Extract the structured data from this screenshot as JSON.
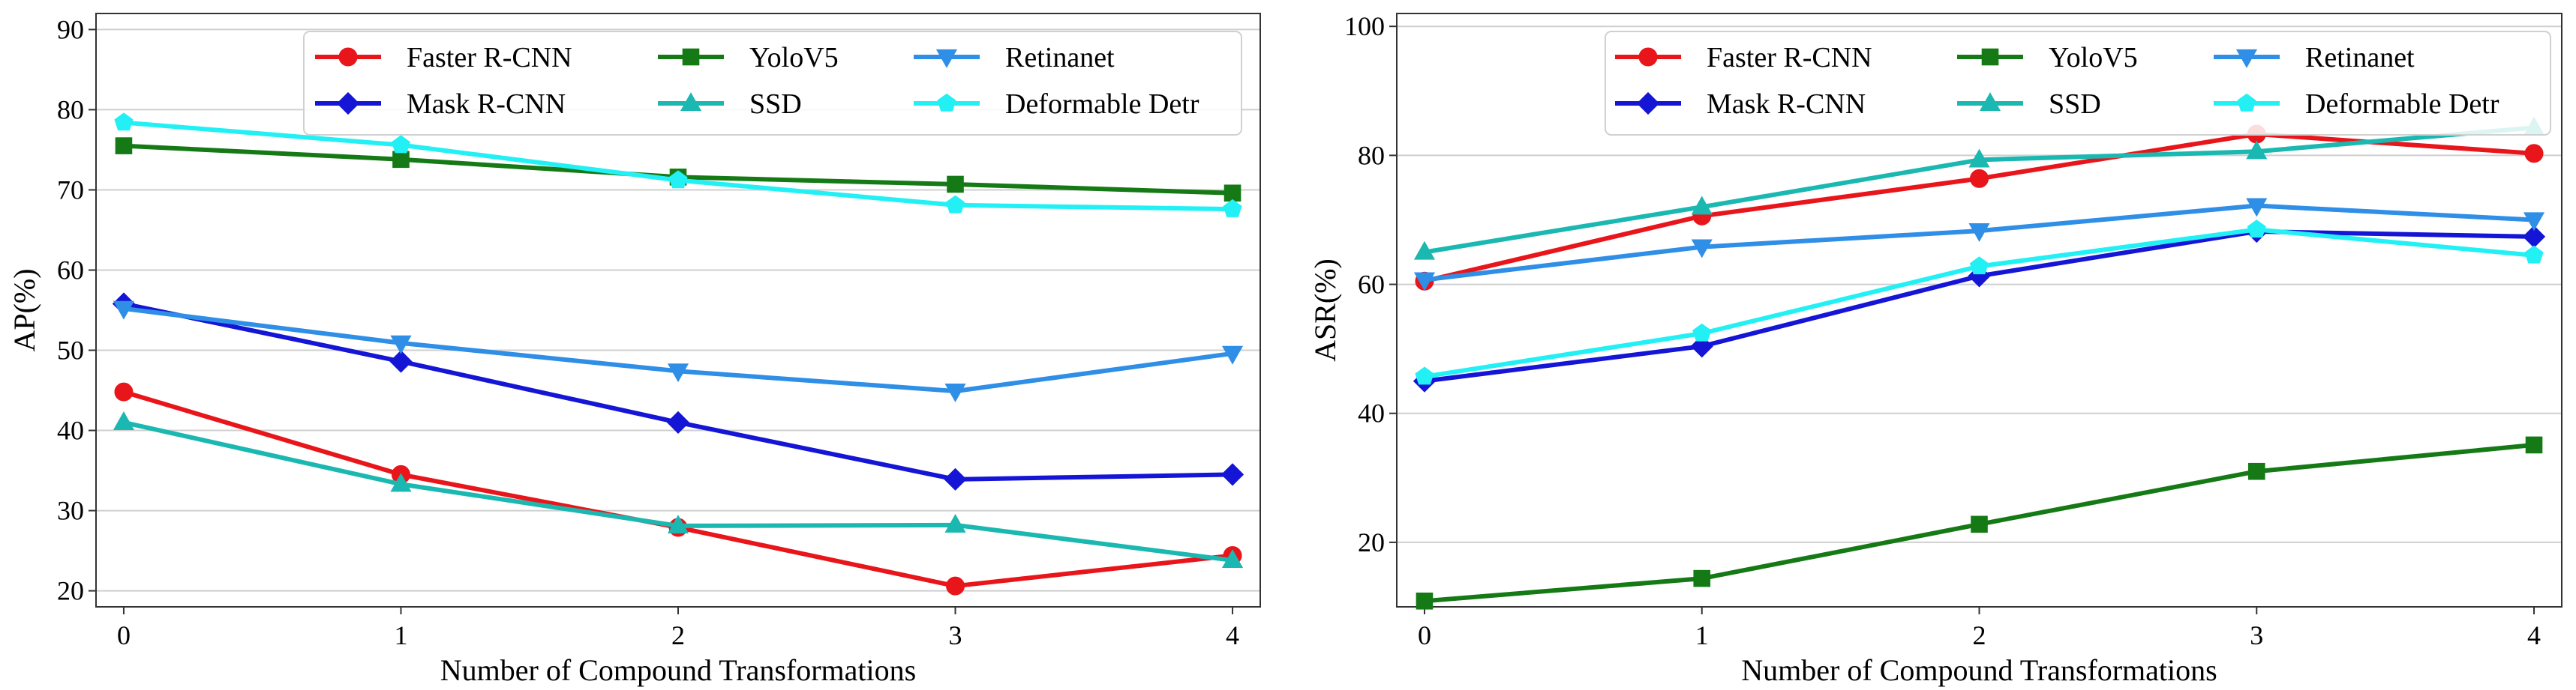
{
  "chart_data": [
    {
      "type": "line",
      "title": "",
      "xlabel": "Number of Compound Transformations",
      "ylabel": "AP(%)",
      "x": [
        0,
        1,
        2,
        3,
        4
      ],
      "xlim": [
        -0.1,
        4.1
      ],
      "ylim": [
        18,
        92
      ],
      "yticks": [
        20,
        30,
        40,
        50,
        60,
        70,
        80,
        90
      ],
      "grid": "horizontal",
      "legend_position": "top-right",
      "series": [
        {
          "name": "Faster R-CNN",
          "color": "#e8161b",
          "marker": "circle",
          "values": [
            44.8,
            34.5,
            27.9,
            20.6,
            24.4
          ]
        },
        {
          "name": "Mask R-CNN",
          "color": "#1515d6",
          "marker": "diamond",
          "values": [
            55.8,
            48.6,
            41.0,
            33.9,
            34.5
          ]
        },
        {
          "name": "YoloV5",
          "color": "#157a15",
          "marker": "square",
          "values": [
            75.5,
            73.8,
            71.6,
            70.7,
            69.6
          ]
        },
        {
          "name": "SSD",
          "color": "#1ab8b0",
          "marker": "triangle-up",
          "values": [
            41.0,
            33.3,
            28.1,
            28.2,
            23.8
          ]
        },
        {
          "name": "Retinanet",
          "color": "#2f8ee6",
          "marker": "triangle-down",
          "values": [
            55.2,
            50.9,
            47.4,
            44.9,
            49.6
          ]
        },
        {
          "name": "Deformable Detr",
          "color": "#22f0f5",
          "marker": "pentagon",
          "values": [
            78.4,
            75.6,
            71.2,
            68.1,
            67.6
          ]
        }
      ]
    },
    {
      "type": "line",
      "title": "",
      "xlabel": "Number of Compound Transformations",
      "ylabel": "ASR(%)",
      "x": [
        0,
        1,
        2,
        3,
        4
      ],
      "xlim": [
        -0.1,
        4.1
      ],
      "ylim": [
        10,
        102
      ],
      "yticks": [
        20,
        40,
        60,
        80,
        100
      ],
      "grid": "horizontal",
      "legend_position": "top-right",
      "series": [
        {
          "name": "Faster R-CNN",
          "color": "#e8161b",
          "marker": "circle",
          "values": [
            60.5,
            70.6,
            76.4,
            83.3,
            80.3
          ]
        },
        {
          "name": "Mask R-CNN",
          "color": "#1515d6",
          "marker": "diamond",
          "values": [
            45.0,
            50.4,
            61.3,
            68.2,
            67.4
          ]
        },
        {
          "name": "YoloV5",
          "color": "#157a15",
          "marker": "square",
          "values": [
            10.9,
            14.4,
            22.8,
            31.0,
            35.1
          ]
        },
        {
          "name": "SSD",
          "color": "#1ab8b0",
          "marker": "triangle-up",
          "values": [
            65.0,
            72.0,
            79.3,
            80.6,
            84.3
          ]
        },
        {
          "name": "Retinanet",
          "color": "#2f8ee6",
          "marker": "triangle-down",
          "values": [
            60.7,
            65.8,
            68.3,
            72.2,
            70.0
          ]
        },
        {
          "name": "Deformable Detr",
          "color": "#22f0f5",
          "marker": "pentagon",
          "values": [
            45.7,
            52.4,
            62.8,
            68.5,
            64.5
          ]
        }
      ]
    }
  ]
}
